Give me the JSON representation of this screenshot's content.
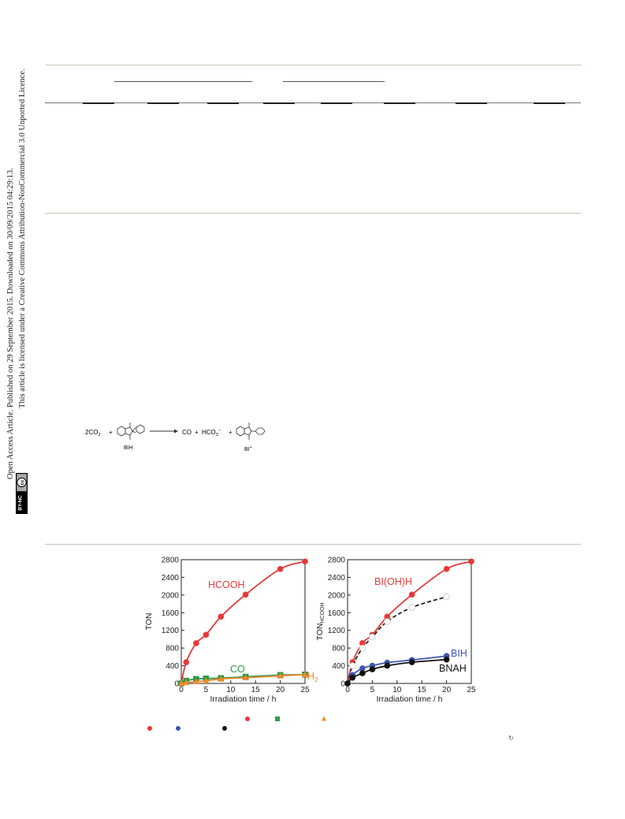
{
  "sidebar": {
    "line1": "Open Access Article. Published on 29 September 2015. Downloaded on 30/09/2015 04:29:13.",
    "line2": "This article is licensed under a Creative Commons Attribution-NonCommercial 3.0 Unported Licence.",
    "badge_cc": "cc",
    "badge_label": "BY-NC"
  },
  "scheme": {
    "reactant": "2CO",
    "reactant_sub": "2",
    "plus1": "+",
    "donor_label": "BIH",
    "product1": "CO",
    "plus2": "+",
    "product2": "HCO",
    "product2_sub": "3",
    "product2_sup": "−",
    "plus3": "+",
    "cation_label": "BI",
    "cation_sup": "+"
  },
  "chart_data": [
    {
      "type": "scatter",
      "xlabel": "Irradiation time / h",
      "ylabel": "TON",
      "xlim": [
        0,
        25
      ],
      "ylim": [
        0,
        2800
      ],
      "xticks": [
        0,
        5,
        10,
        15,
        20,
        25
      ],
      "yticks": [
        0,
        400,
        800,
        1200,
        1600,
        2000,
        2400,
        2800
      ],
      "series": [
        {
          "name": "HCOOH",
          "color": "#e8393a",
          "marker": "circle",
          "x": [
            0,
            1,
            3,
            5,
            8,
            13,
            20,
            25
          ],
          "y": [
            0,
            480,
            910,
            1100,
            1510,
            2010,
            2590,
            2760
          ]
        },
        {
          "name": "CO",
          "color": "#2e9a48",
          "marker": "square",
          "x": [
            0,
            1,
            3,
            5,
            8,
            13,
            20,
            25
          ],
          "y": [
            0,
            60,
            100,
            110,
            120,
            150,
            190,
            200
          ]
        },
        {
          "name": "H",
          "name_sub": "2",
          "color": "#f08a32",
          "marker": "triangle",
          "x": [
            0,
            1,
            3,
            5,
            8,
            13,
            20,
            25
          ],
          "y": [
            0,
            20,
            40,
            60,
            100,
            130,
            170,
            200
          ]
        }
      ]
    },
    {
      "type": "scatter",
      "xlabel": "Irradiation time / h",
      "ylabel": "TON",
      "ylabel_sub": "HCOOH",
      "xlim": [
        0,
        25
      ],
      "ylim": [
        0,
        2800
      ],
      "xticks": [
        0,
        5,
        10,
        15,
        20,
        25
      ],
      "yticks": [
        0,
        400,
        800,
        1200,
        1600,
        2000,
        2400,
        2800
      ],
      "series": [
        {
          "name": "BI(OH)H",
          "color": "#e8393a",
          "marker": "circle",
          "x": [
            0,
            1,
            3,
            5,
            8,
            13,
            20,
            25
          ],
          "y": [
            0,
            480,
            910,
            1100,
            1510,
            2010,
            2590,
            2760
          ]
        },
        {
          "name": "",
          "color": "#d0d0d0",
          "marker": "open-circle",
          "dashed": true,
          "x": [
            0,
            1,
            3,
            5,
            8,
            13,
            20
          ],
          "y": [
            0,
            400,
            800,
            1050,
            1400,
            1720,
            1960
          ]
        },
        {
          "name": "BIH",
          "color": "#3f55b0",
          "marker": "circle",
          "x": [
            0,
            1,
            3,
            5,
            8,
            13,
            20
          ],
          "y": [
            0,
            190,
            340,
            400,
            470,
            530,
            620
          ]
        },
        {
          "name": "BNAH",
          "color": "#111111",
          "marker": "circle",
          "x": [
            0,
            1,
            3,
            5,
            8,
            13,
            20
          ],
          "y": [
            0,
            130,
            230,
            320,
            400,
            480,
            540
          ]
        }
      ]
    }
  ],
  "legend_markers": [
    {
      "shape": "circle",
      "color": "#e8393a"
    },
    {
      "shape": "circle",
      "color": "#3f55b0"
    },
    {
      "shape": "circle",
      "color": "#111111"
    },
    {
      "shape": "circle",
      "color": "#e8393a"
    },
    {
      "shape": "square",
      "color": "#2e9a48"
    },
    {
      "shape": "triangle",
      "color": "#f08a32"
    }
  ],
  "icons": {
    "refresh": "↻"
  }
}
